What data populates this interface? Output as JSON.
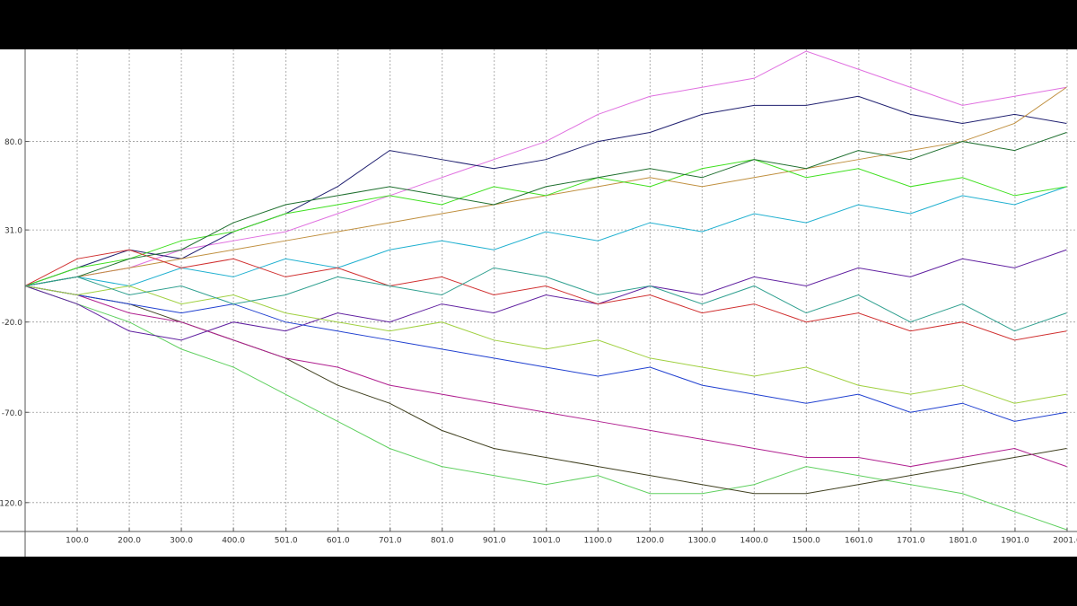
{
  "chart_data": {
    "type": "line",
    "x": [
      0,
      100,
      200,
      300,
      400,
      500,
      600,
      700,
      800,
      900,
      1000,
      1100,
      1200,
      1300,
      1400,
      1500,
      1600,
      1700,
      1800,
      1900,
      2000
    ],
    "series": [
      {
        "color": "#e070e0",
        "values": [
          0,
          5,
          10,
          20,
          25,
          30,
          40,
          50,
          60,
          70,
          80,
          95,
          105,
          110,
          115,
          130,
          120,
          110,
          100,
          105,
          110
        ]
      },
      {
        "color": "#202070",
        "values": [
          0,
          10,
          20,
          15,
          30,
          40,
          55,
          75,
          70,
          65,
          70,
          80,
          85,
          95,
          100,
          100,
          105,
          95,
          90,
          95,
          90
        ]
      },
      {
        "color": "#60d060",
        "values": [
          0,
          -10,
          -20,
          -35,
          -45,
          -60,
          -75,
          -90,
          -100,
          -105,
          -110,
          -105,
          -115,
          -115,
          -110,
          -100,
          -105,
          -110,
          -115,
          -125,
          -135
        ]
      },
      {
        "color": "#404020",
        "values": [
          0,
          -5,
          -10,
          -20,
          -30,
          -40,
          -55,
          -65,
          -80,
          -90,
          -95,
          -100,
          -105,
          -110,
          -115,
          -115,
          -110,
          -105,
          -100,
          -95,
          -90
        ]
      },
      {
        "color": "#b02090",
        "values": [
          0,
          -5,
          -15,
          -20,
          -30,
          -40,
          -45,
          -55,
          -60,
          -65,
          -70,
          -75,
          -80,
          -85,
          -90,
          -95,
          -95,
          -100,
          -95,
          -90,
          -100
        ]
      },
      {
        "color": "#c09040",
        "values": [
          0,
          5,
          10,
          15,
          20,
          25,
          30,
          35,
          40,
          45,
          50,
          55,
          60,
          55,
          60,
          65,
          70,
          75,
          80,
          90,
          110
        ]
      },
      {
        "color": "#20b0d0",
        "values": [
          0,
          5,
          0,
          10,
          5,
          15,
          10,
          20,
          25,
          20,
          30,
          25,
          35,
          30,
          40,
          35,
          45,
          40,
          50,
          45,
          55
        ]
      },
      {
        "color": "#6020a0",
        "values": [
          0,
          -10,
          -25,
          -30,
          -20,
          -25,
          -15,
          -20,
          -10,
          -15,
          -5,
          -10,
          0,
          -5,
          5,
          0,
          10,
          5,
          15,
          10,
          20
        ]
      },
      {
        "color": "#40e020",
        "values": [
          0,
          10,
          15,
          25,
          30,
          40,
          45,
          50,
          45,
          55,
          50,
          60,
          55,
          65,
          70,
          60,
          65,
          55,
          60,
          50,
          55
        ]
      },
      {
        "color": "#d03030",
        "values": [
          0,
          15,
          20,
          10,
          15,
          5,
          10,
          0,
          5,
          -5,
          0,
          -10,
          -5,
          -15,
          -10,
          -20,
          -15,
          -25,
          -20,
          -30,
          -25
        ]
      },
      {
        "color": "#2040d0",
        "values": [
          0,
          -5,
          -10,
          -15,
          -10,
          -20,
          -25,
          -30,
          -35,
          -40,
          -45,
          -50,
          -45,
          -55,
          -60,
          -65,
          -60,
          -70,
          -65,
          -75,
          -70
        ]
      },
      {
        "color": "#207030",
        "values": [
          0,
          5,
          15,
          20,
          35,
          45,
          50,
          55,
          50,
          45,
          55,
          60,
          65,
          60,
          70,
          65,
          75,
          70,
          80,
          75,
          85
        ]
      },
      {
        "color": "#a0d040",
        "values": [
          0,
          -5,
          0,
          -10,
          -5,
          -15,
          -20,
          -25,
          -20,
          -30,
          -35,
          -30,
          -40,
          -45,
          -50,
          -45,
          -55,
          -60,
          -55,
          -65,
          -60
        ]
      },
      {
        "color": "#30a090",
        "values": [
          0,
          5,
          -5,
          0,
          -10,
          -5,
          5,
          0,
          -5,
          10,
          5,
          -5,
          0,
          -10,
          0,
          -15,
          -5,
          -20,
          -10,
          -25,
          -15
        ]
      }
    ],
    "xlim": [
      0,
      2020
    ],
    "ylim": [
      -136,
      131
    ],
    "xticks": [
      {
        "value": 100,
        "label": "100.0"
      },
      {
        "value": 200,
        "label": "200.0"
      },
      {
        "value": 300,
        "label": "300.0"
      },
      {
        "value": 400,
        "label": "400.0"
      },
      {
        "value": 501,
        "label": "501.0"
      },
      {
        "value": 601,
        "label": "601.0"
      },
      {
        "value": 701,
        "label": "701.0"
      },
      {
        "value": 801,
        "label": "801.0"
      },
      {
        "value": 901,
        "label": "901.0"
      },
      {
        "value": 1001,
        "label": "1001.0"
      },
      {
        "value": 1100,
        "label": "1100.0"
      },
      {
        "value": 1200,
        "label": "1200.0"
      },
      {
        "value": 1300,
        "label": "1300.0"
      },
      {
        "value": 1400,
        "label": "1400.0"
      },
      {
        "value": 1500,
        "label": "1500.0"
      },
      {
        "value": 1601,
        "label": "1601.0"
      },
      {
        "value": 1701,
        "label": "1701.0"
      },
      {
        "value": 1801,
        "label": "1801.0"
      },
      {
        "value": 1901,
        "label": "1901.0"
      },
      {
        "value": 2001,
        "label": "2001.0"
      }
    ],
    "yticks": [
      {
        "value": 80,
        "label": "80.0"
      },
      {
        "value": 31,
        "label": "31.0"
      },
      {
        "value": -20,
        "label": "-20.0"
      },
      {
        "value": -70,
        "label": "-70.0"
      },
      {
        "value": -120,
        "label": "-120.0"
      }
    ],
    "grid": true
  }
}
